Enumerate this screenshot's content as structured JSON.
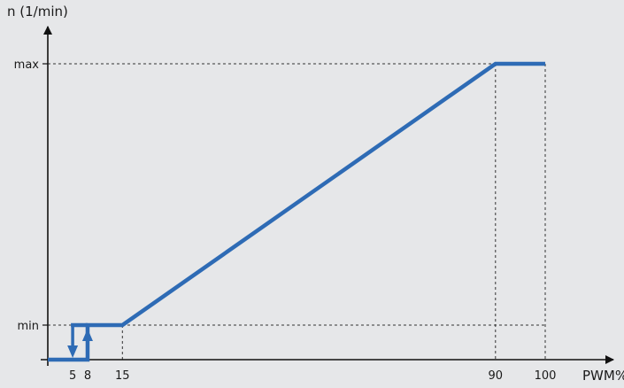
{
  "chart_data": {
    "type": "line",
    "title": "",
    "xlabel": "PWM%",
    "ylabel": "n (1/min)",
    "x_ticks": [
      "5",
      "8",
      "15",
      "90",
      "100"
    ],
    "y_ticks": [
      "min",
      "max"
    ],
    "xlim": [
      0,
      105
    ],
    "ylim": [
      0,
      1
    ],
    "grid": false,
    "series": [
      {
        "color": "#2e6bb5",
        "points": [
          [
            0,
            0
          ],
          [
            8,
            0
          ],
          [
            8,
            0.08
          ],
          [
            15,
            0.08
          ],
          [
            90,
            1
          ],
          [
            100,
            1
          ]
        ],
        "hysteresis_off_path": [
          [
            5,
            0.08
          ],
          [
            5,
            0
          ]
        ],
        "arrows": [
          {
            "x": 5,
            "direction": "down"
          },
          {
            "x": 8,
            "direction": "up"
          }
        ]
      }
    ],
    "reference_lines": {
      "horizontal_at": [
        "min",
        "max"
      ],
      "vertical_at": [
        "15",
        "90",
        "100"
      ]
    }
  },
  "colors": {
    "background": "#e6e7e9",
    "curve": "#2e6bb5",
    "axis": "#111111",
    "guide": "#333333"
  }
}
